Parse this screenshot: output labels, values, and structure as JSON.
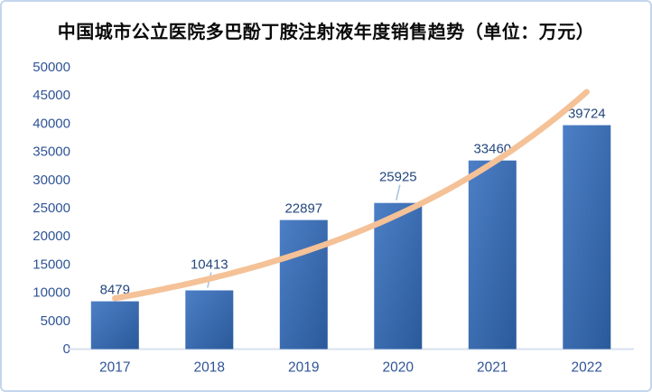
{
  "chart_data": {
    "type": "bar",
    "title": "中国城市公立医院多巴酚丁胺注射液年度销售趋势（单位：万元）",
    "categories": [
      "2017",
      "2018",
      "2019",
      "2020",
      "2021",
      "2022"
    ],
    "values": [
      8479,
      10413,
      22897,
      25925,
      33460,
      39724
    ],
    "y_ticks": [
      0,
      5000,
      10000,
      15000,
      20000,
      25000,
      30000,
      35000,
      40000,
      45000,
      50000
    ],
    "ylim": [
      0,
      50000
    ],
    "xlabel": "",
    "ylabel": "",
    "grid": false,
    "legend": false,
    "trendline": {
      "type": "exponential",
      "span": "first-to-last-category"
    },
    "callout_leader_indices": [
      1,
      3
    ]
  },
  "colors": {
    "bar_gradient_start": "#4d7fc6",
    "bar_gradient_end": "#2a5a9a",
    "value_label": "#24477e",
    "tick_label": "#2f5496",
    "axis_line": "#d9e2f0",
    "trend": "#f5c197",
    "leader_line": "#a6c1e0",
    "border": "#c3d6ec",
    "title": "#0a0a0a",
    "background": "#ffffff"
  }
}
